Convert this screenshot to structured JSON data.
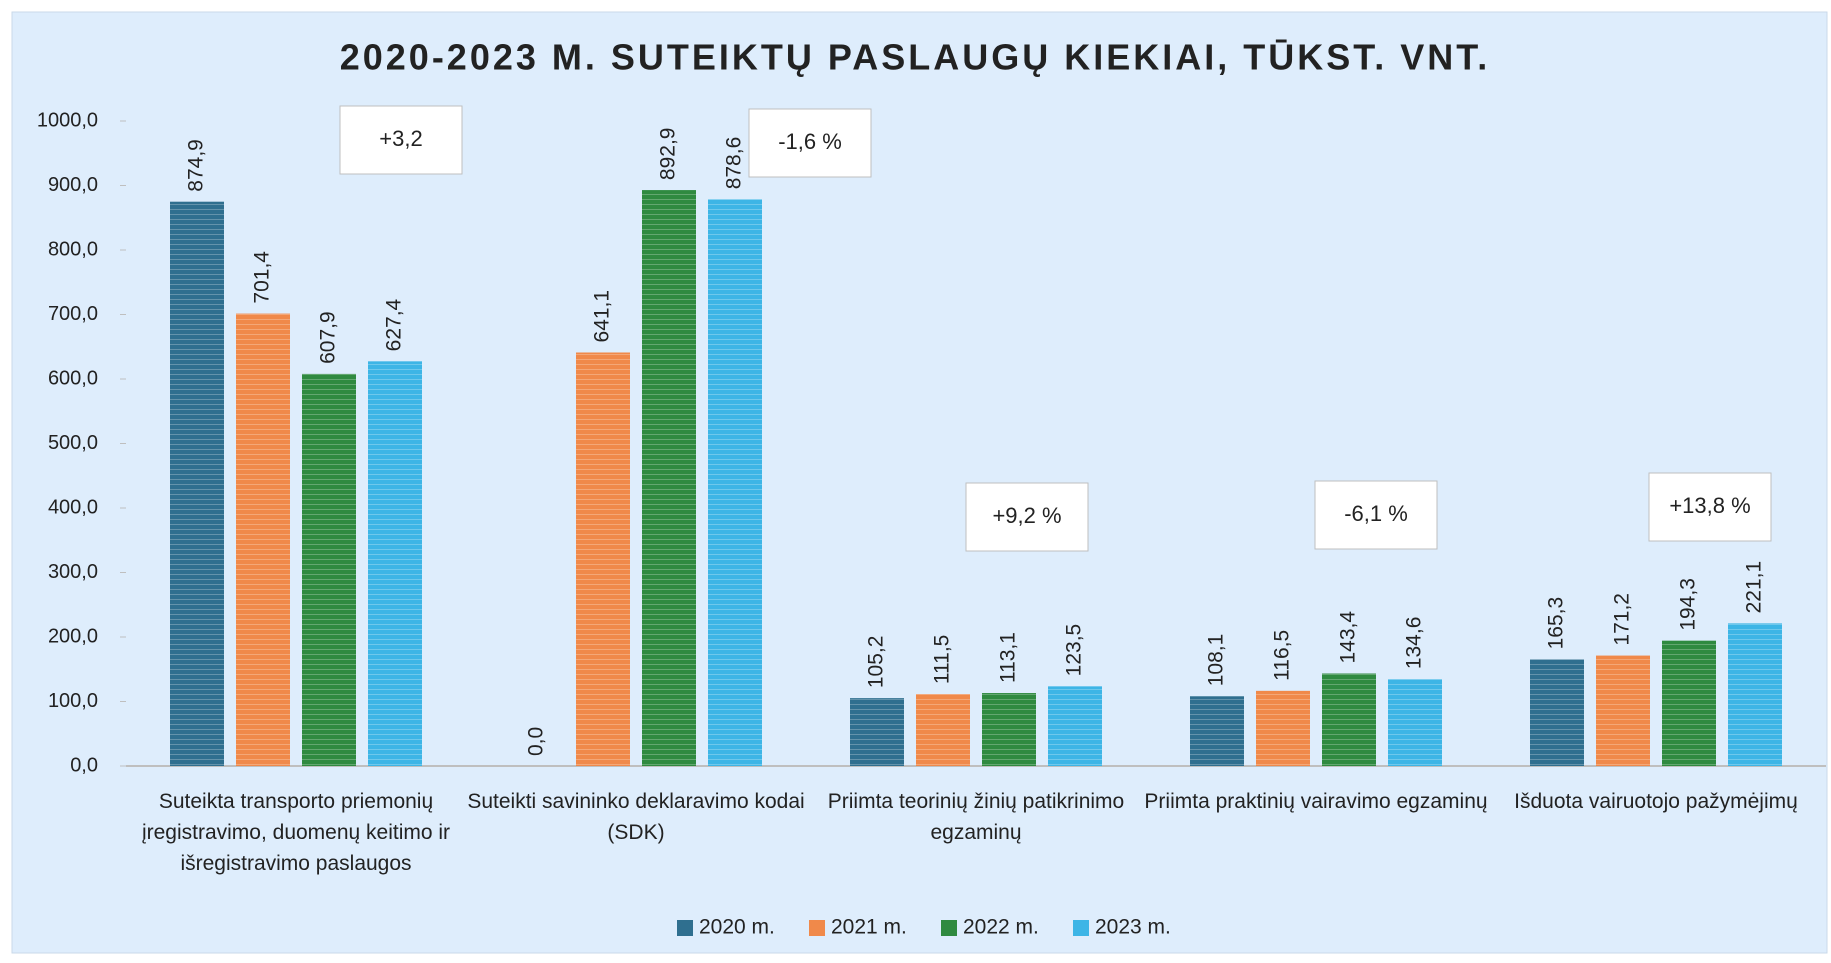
{
  "chart_data": {
    "type": "bar",
    "title": "2020-2023 M. SUTEIKTŲ PASLAUGŲ KIEKIAI, TŪKST. VNT.",
    "categories": [
      "Suteikta transporto priemonių įregistravimo, duomenų keitimo ir išregistravimo paslaugos",
      "Suteikti savininko deklaravimo kodai (SDK)",
      "Priimta teorinių žinių patikrinimo egzaminų",
      "Priimta praktinių vairavimo egzaminų",
      "Išduota vairuotojo pažymėjimų"
    ],
    "series": [
      {
        "name": "2020 m.",
        "color": "#2f6f8f",
        "values": [
          874.9,
          0.0,
          105.2,
          108.1,
          165.3
        ],
        "value_labels": [
          "874,9",
          "0,0",
          "105,2",
          "108,1",
          "165,3"
        ]
      },
      {
        "name": "2021 m.",
        "color": "#f0894a",
        "values": [
          701.4,
          641.1,
          111.5,
          116.5,
          171.2
        ],
        "value_labels": [
          "701,4",
          "641,1",
          "111,5",
          "116,5",
          "171,2"
        ]
      },
      {
        "name": "2022 m.",
        "color": "#2f8a40",
        "values": [
          607.9,
          892.9,
          113.1,
          143.4,
          194.3
        ],
        "value_labels": [
          "607,9",
          "892,9",
          "113,1",
          "143,4",
          "194,3"
        ]
      },
      {
        "name": "2023 m.",
        "color": "#3db5e6",
        "values": [
          627.4,
          878.6,
          123.5,
          134.6,
          221.1
        ],
        "value_labels": [
          "627,4",
          "878,6",
          "123,5",
          "134,6",
          "221,1"
        ]
      }
    ],
    "annotations": [
      "+3,2",
      "-1,6 %",
      "+9,2 %",
      "-6,1 %",
      "+13,8 %"
    ],
    "ylim": [
      0,
      1000
    ],
    "yticks": [
      {
        "value": 0,
        "label": "0,0"
      },
      {
        "value": 100,
        "label": "100,0"
      },
      {
        "value": 200,
        "label": "200,0"
      },
      {
        "value": 300,
        "label": "300,0"
      },
      {
        "value": 400,
        "label": "400,0"
      },
      {
        "value": 500,
        "label": "500,0"
      },
      {
        "value": 600,
        "label": "600,0"
      },
      {
        "value": 700,
        "label": "700,0"
      },
      {
        "value": 800,
        "label": "800,0"
      },
      {
        "value": 900,
        "label": "900,0"
      },
      {
        "value": 1000,
        "label": "1000,0"
      }
    ],
    "legend": "bottom"
  }
}
